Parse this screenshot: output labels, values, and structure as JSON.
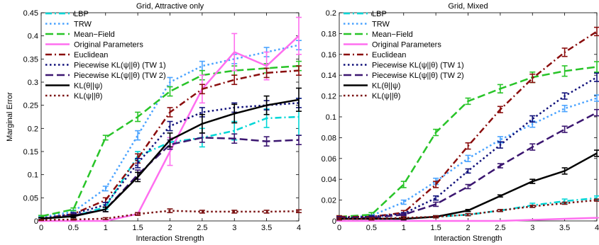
{
  "figure": {
    "xlabel": "Interaction Strength",
    "ylabel": "Marginal Error"
  },
  "chart_data": [
    {
      "type": "line",
      "title": "Grid, Attractive only",
      "xlabel": "Interaction Strength",
      "ylabel": "Marginal Error",
      "x": [
        0,
        0.5,
        1,
        1.5,
        2,
        2.5,
        3,
        3.5,
        4
      ],
      "xlim": [
        0,
        4
      ],
      "ylim": [
        0,
        0.45
      ],
      "xticks": [
        "0",
        "0.5",
        "1",
        "1.5",
        "2",
        "2.5",
        "3",
        "3.5",
        "4"
      ],
      "yticks": [
        "0",
        "0.05",
        "0.1",
        "0.15",
        "0.2",
        "0.25",
        "0.3",
        "0.35",
        "0.4",
        "0.45"
      ],
      "legend_position": "top-left",
      "error_bars": true,
      "series": [
        {
          "name": "LBP",
          "color": "#00d6d6",
          "dash": "dash-dot",
          "values": [
            0.005,
            0.01,
            0.03,
            0.14,
            0.17,
            0.18,
            0.195,
            0.222,
            0.225
          ],
          "errors": [
            0.002,
            0.003,
            0.005,
            0.01,
            0.01,
            0.02,
            0.02,
            0.02,
            0.04
          ]
        },
        {
          "name": "TRW",
          "color": "#4aa3ff",
          "dash": "dotted",
          "values": [
            0.008,
            0.02,
            0.07,
            0.185,
            0.3,
            0.335,
            0.35,
            0.365,
            0.38
          ],
          "errors": [
            0.002,
            0.003,
            0.005,
            0.01,
            0.01,
            0.01,
            0.01,
            0.01,
            0.01
          ]
        },
        {
          "name": "Mean−Field",
          "color": "#28c428",
          "dash": "dashed",
          "values": [
            0.01,
            0.025,
            0.18,
            0.225,
            0.28,
            0.315,
            0.325,
            0.33,
            0.335
          ],
          "errors": [
            0.002,
            0.003,
            0.005,
            0.01,
            0.01,
            0.01,
            0.01,
            0.01,
            0.01
          ]
        },
        {
          "name": "Original Parameters",
          "color": "#ff6eef",
          "dash": "solid",
          "values": [
            0.0,
            0.0,
            0.0,
            0.015,
            0.15,
            0.285,
            0.365,
            0.335,
            0.4
          ],
          "errors": [
            0.001,
            0.001,
            0.001,
            0.003,
            0.03,
            0.03,
            0.04,
            0.03,
            0.04
          ]
        },
        {
          "name": "Euclidean",
          "color": "#8a0d0d",
          "dash": "dash-dot",
          "values": [
            0.005,
            0.015,
            0.045,
            0.135,
            0.235,
            0.285,
            0.305,
            0.32,
            0.325
          ],
          "errors": [
            0.002,
            0.003,
            0.005,
            0.01,
            0.01,
            0.01,
            0.01,
            0.01,
            0.01
          ]
        },
        {
          "name": "Piecewise KL(ψ||θ) (TW 1)",
          "color": "#10107a",
          "dash": "dotted",
          "values": [
            0.005,
            0.015,
            0.035,
            0.125,
            0.205,
            0.235,
            0.245,
            0.25,
            0.255
          ],
          "errors": [
            0.002,
            0.003,
            0.005,
            0.01,
            0.01,
            0.01,
            0.01,
            0.01,
            0.01
          ]
        },
        {
          "name": "Piecewise KL(ψ||θ) (TW 2)",
          "color": "#3b1670",
          "dash": "dashed",
          "values": [
            0.005,
            0.012,
            0.025,
            0.1,
            0.165,
            0.18,
            0.178,
            0.172,
            0.175
          ],
          "errors": [
            0.002,
            0.003,
            0.005,
            0.01,
            0.01,
            0.01,
            0.01,
            0.01,
            0.01
          ]
        },
        {
          "name": "KL(θ||ψ)",
          "color": "#000000",
          "dash": "solid",
          "values": [
            0.005,
            0.01,
            0.025,
            0.095,
            0.175,
            0.21,
            0.232,
            0.25,
            0.262
          ],
          "errors": [
            0.002,
            0.003,
            0.005,
            0.01,
            0.015,
            0.02,
            0.02,
            0.02,
            0.025
          ]
        },
        {
          "name": "KL(ψ||θ)",
          "color": "#7a1212",
          "dash": "dotted",
          "values": [
            0.002,
            0.003,
            0.005,
            0.015,
            0.022,
            0.02,
            0.02,
            0.02,
            0.021
          ],
          "errors": [
            0.001,
            0.001,
            0.002,
            0.003,
            0.004,
            0.003,
            0.003,
            0.003,
            0.003
          ]
        }
      ]
    },
    {
      "type": "line",
      "title": "Grid, Mixed",
      "xlabel": "Interaction Strength",
      "ylabel": "",
      "x": [
        0,
        0.5,
        1,
        1.5,
        2,
        2.5,
        3,
        3.5,
        4
      ],
      "xlim": [
        0,
        4
      ],
      "ylim": [
        0,
        0.2
      ],
      "xticks": [
        "0",
        "0.5",
        "1",
        "1.5",
        "2",
        "2.5",
        "3",
        "3.5",
        "4"
      ],
      "yticks": [
        "0",
        "0.02",
        "0.04",
        "0.06",
        "0.08",
        "0.1",
        "0.12",
        "0.14",
        "0.16",
        "0.18",
        "0.2"
      ],
      "legend_position": "top-left",
      "error_bars": true,
      "series": [
        {
          "name": "LBP",
          "color": "#00d6d6",
          "dash": "dash-dot",
          "values": [
            0.002,
            0.002,
            0.002,
            0.004,
            0.006,
            0.01,
            0.015,
            0.019,
            0.022
          ],
          "errors": [
            0.001,
            0.001,
            0.001,
            0.001,
            0.001,
            0.001,
            0.002,
            0.002,
            0.002
          ]
        },
        {
          "name": "TRW",
          "color": "#4aa3ff",
          "dash": "dotted",
          "values": [
            0.003,
            0.005,
            0.018,
            0.038,
            0.06,
            0.078,
            0.093,
            0.108,
            0.118
          ],
          "errors": [
            0.001,
            0.001,
            0.002,
            0.003,
            0.003,
            0.003,
            0.003,
            0.003,
            0.003
          ]
        },
        {
          "name": "Mean−Field",
          "color": "#28c428",
          "dash": "dashed",
          "values": [
            0.004,
            0.006,
            0.035,
            0.085,
            0.115,
            0.127,
            0.138,
            0.144,
            0.148
          ],
          "errors": [
            0.001,
            0.002,
            0.003,
            0.003,
            0.003,
            0.004,
            0.005,
            0.005,
            0.005
          ]
        },
        {
          "name": "Original Parameters",
          "color": "#ff6eef",
          "dash": "solid",
          "values": [
            0.0,
            0.0,
            0.0,
            0.0,
            0.0,
            0.0,
            0.001,
            0.002,
            0.003
          ],
          "errors": [
            0.0,
            0.0,
            0.0,
            0.0,
            0.0,
            0.0,
            0.0,
            0.0,
            0.0
          ]
        },
        {
          "name": "Euclidean",
          "color": "#8a0d0d",
          "dash": "dash-dot",
          "values": [
            0.004,
            0.004,
            0.008,
            0.035,
            0.072,
            0.107,
            0.137,
            0.162,
            0.182
          ],
          "errors": [
            0.001,
            0.001,
            0.002,
            0.003,
            0.003,
            0.003,
            0.004,
            0.004,
            0.004
          ]
        },
        {
          "name": "Piecewise KL(ψ||θ) (TW 1)",
          "color": "#10107a",
          "dash": "dotted",
          "values": [
            0.003,
            0.004,
            0.007,
            0.022,
            0.048,
            0.073,
            0.098,
            0.12,
            0.138
          ],
          "errors": [
            0.001,
            0.001,
            0.001,
            0.002,
            0.002,
            0.003,
            0.003,
            0.003,
            0.004
          ]
        },
        {
          "name": "Piecewise KL(ψ||θ) (TW 2)",
          "color": "#3b1670",
          "dash": "dashed",
          "values": [
            0.003,
            0.003,
            0.006,
            0.016,
            0.033,
            0.053,
            0.071,
            0.088,
            0.104
          ],
          "errors": [
            0.001,
            0.001,
            0.001,
            0.002,
            0.002,
            0.002,
            0.003,
            0.003,
            0.003
          ]
        },
        {
          "name": "KL(θ||ψ)",
          "color": "#000000",
          "dash": "solid",
          "values": [
            0.002,
            0.002,
            0.002,
            0.004,
            0.01,
            0.024,
            0.038,
            0.048,
            0.065
          ],
          "errors": [
            0.001,
            0.001,
            0.001,
            0.001,
            0.001,
            0.001,
            0.002,
            0.003,
            0.003
          ]
        },
        {
          "name": "KL(ψ||θ)",
          "color": "#7a1212",
          "dash": "dotted",
          "values": [
            0.002,
            0.002,
            0.003,
            0.004,
            0.006,
            0.01,
            0.014,
            0.017,
            0.02
          ],
          "errors": [
            0.001,
            0.001,
            0.001,
            0.001,
            0.001,
            0.001,
            0.001,
            0.001,
            0.001
          ]
        }
      ]
    }
  ]
}
